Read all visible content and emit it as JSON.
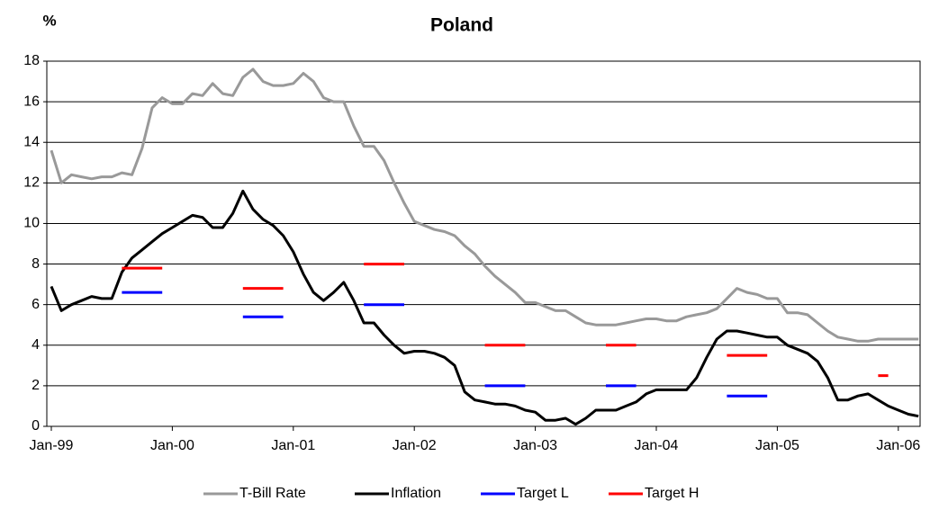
{
  "chart_data": {
    "type": "line",
    "title": "Poland",
    "y_label": "%",
    "categories": [
      "Jan-99",
      null,
      null,
      null,
      null,
      null,
      null,
      null,
      null,
      null,
      null,
      null,
      "Jan-00",
      null,
      null,
      null,
      null,
      null,
      null,
      null,
      null,
      null,
      null,
      null,
      "Jan-01",
      null,
      null,
      null,
      null,
      null,
      null,
      null,
      null,
      null,
      null,
      null,
      "Jan-02",
      null,
      null,
      null,
      null,
      null,
      null,
      null,
      null,
      null,
      null,
      null,
      "Jan-03",
      null,
      null,
      null,
      null,
      null,
      null,
      null,
      null,
      null,
      null,
      null,
      "Jan-04",
      null,
      null,
      null,
      null,
      null,
      null,
      null,
      null,
      null,
      null,
      null,
      "Jan-05",
      null,
      null,
      null,
      null,
      null,
      null,
      null,
      null,
      null,
      null,
      null,
      "Jan-06",
      null,
      null
    ],
    "series": [
      {
        "name": "T-Bill Rate",
        "color": "#999999",
        "values": [
          13.6,
          12.0,
          12.4,
          12.3,
          12.2,
          12.3,
          12.3,
          12.5,
          12.4,
          13.7,
          15.7,
          16.2,
          15.9,
          15.9,
          16.4,
          16.3,
          16.9,
          16.4,
          16.3,
          17.2,
          17.6,
          17.0,
          16.8,
          16.8,
          16.9,
          17.4,
          17.0,
          16.2,
          16.0,
          16.0,
          14.8,
          13.8,
          13.8,
          13.1,
          12.0,
          11.0,
          10.1,
          9.9,
          9.7,
          9.6,
          9.4,
          8.9,
          8.5,
          7.9,
          7.4,
          7.0,
          6.6,
          6.1,
          6.1,
          5.9,
          5.7,
          5.7,
          5.4,
          5.1,
          5.0,
          5.0,
          5.0,
          5.1,
          5.2,
          5.3,
          5.3,
          5.2,
          5.2,
          5.4,
          5.5,
          5.6,
          5.8,
          6.3,
          6.8,
          6.6,
          6.5,
          6.3,
          6.3,
          5.6,
          5.6,
          5.5,
          5.1,
          4.7,
          4.4,
          4.3,
          4.2,
          4.2,
          4.3,
          4.3,
          4.3,
          4.3,
          4.3
        ]
      },
      {
        "name": "Inflation",
        "color": "#000000",
        "values": [
          6.9,
          5.7,
          6.0,
          6.2,
          6.4,
          6.3,
          6.3,
          7.6,
          8.3,
          8.7,
          9.1,
          9.5,
          9.8,
          10.1,
          10.4,
          10.3,
          9.8,
          9.8,
          10.5,
          11.6,
          10.7,
          10.2,
          9.9,
          9.4,
          8.6,
          7.5,
          6.6,
          6.2,
          6.6,
          7.1,
          6.2,
          5.1,
          5.1,
          4.5,
          4.0,
          3.6,
          3.7,
          3.7,
          3.6,
          3.4,
          3.0,
          1.7,
          1.3,
          1.2,
          1.1,
          1.1,
          1.0,
          0.8,
          0.7,
          0.3,
          0.3,
          0.4,
          0.1,
          0.4,
          0.8,
          0.8,
          0.8,
          1.0,
          1.2,
          1.6,
          1.8,
          1.8,
          1.8,
          1.8,
          2.4,
          3.4,
          4.3,
          4.7,
          4.7,
          4.6,
          4.5,
          4.4,
          4.4,
          4.0,
          3.8,
          3.6,
          3.2,
          2.4,
          1.3,
          1.3,
          1.5,
          1.6,
          1.3,
          1.0,
          0.8,
          0.6,
          0.5
        ]
      },
      {
        "name": "Target L",
        "color": "#0000ff",
        "values": [
          null,
          null,
          null,
          null,
          null,
          null,
          null,
          6.6,
          6.6,
          6.6,
          6.6,
          6.6,
          null,
          null,
          null,
          null,
          null,
          null,
          null,
          5.4,
          5.4,
          5.4,
          5.4,
          5.4,
          null,
          null,
          null,
          null,
          null,
          null,
          null,
          6.0,
          6.0,
          6.0,
          6.0,
          6.0,
          null,
          null,
          null,
          null,
          null,
          null,
          null,
          2.0,
          2.0,
          2.0,
          2.0,
          2.0,
          null,
          null,
          null,
          null,
          null,
          null,
          null,
          2.0,
          2.0,
          2.0,
          2.0,
          null,
          null,
          null,
          null,
          null,
          null,
          null,
          null,
          1.5,
          1.5,
          1.5,
          1.5,
          1.5,
          null,
          null,
          null,
          null,
          null,
          null,
          null,
          null,
          null,
          null,
          null,
          null,
          null,
          null,
          null
        ]
      },
      {
        "name": "Target H",
        "color": "#ff0000",
        "values": [
          null,
          null,
          null,
          null,
          null,
          null,
          null,
          7.8,
          7.8,
          7.8,
          7.8,
          7.8,
          null,
          null,
          null,
          null,
          null,
          null,
          null,
          6.8,
          6.8,
          6.8,
          6.8,
          6.8,
          null,
          null,
          null,
          null,
          null,
          null,
          null,
          8.0,
          8.0,
          8.0,
          8.0,
          8.0,
          null,
          null,
          null,
          null,
          null,
          null,
          null,
          4.0,
          4.0,
          4.0,
          4.0,
          4.0,
          null,
          null,
          null,
          null,
          null,
          null,
          null,
          4.0,
          4.0,
          4.0,
          4.0,
          null,
          null,
          null,
          null,
          null,
          null,
          null,
          null,
          3.5,
          3.5,
          3.5,
          3.5,
          3.5,
          null,
          null,
          null,
          null,
          null,
          null,
          null,
          null,
          null,
          null,
          2.5,
          2.5,
          null,
          null,
          null
        ]
      }
    ],
    "ylim": [
      0,
      18
    ],
    "yticks": [
      0,
      2,
      4,
      6,
      8,
      10,
      12,
      14,
      16,
      18
    ],
    "grid": true,
    "legend": "bottom"
  }
}
